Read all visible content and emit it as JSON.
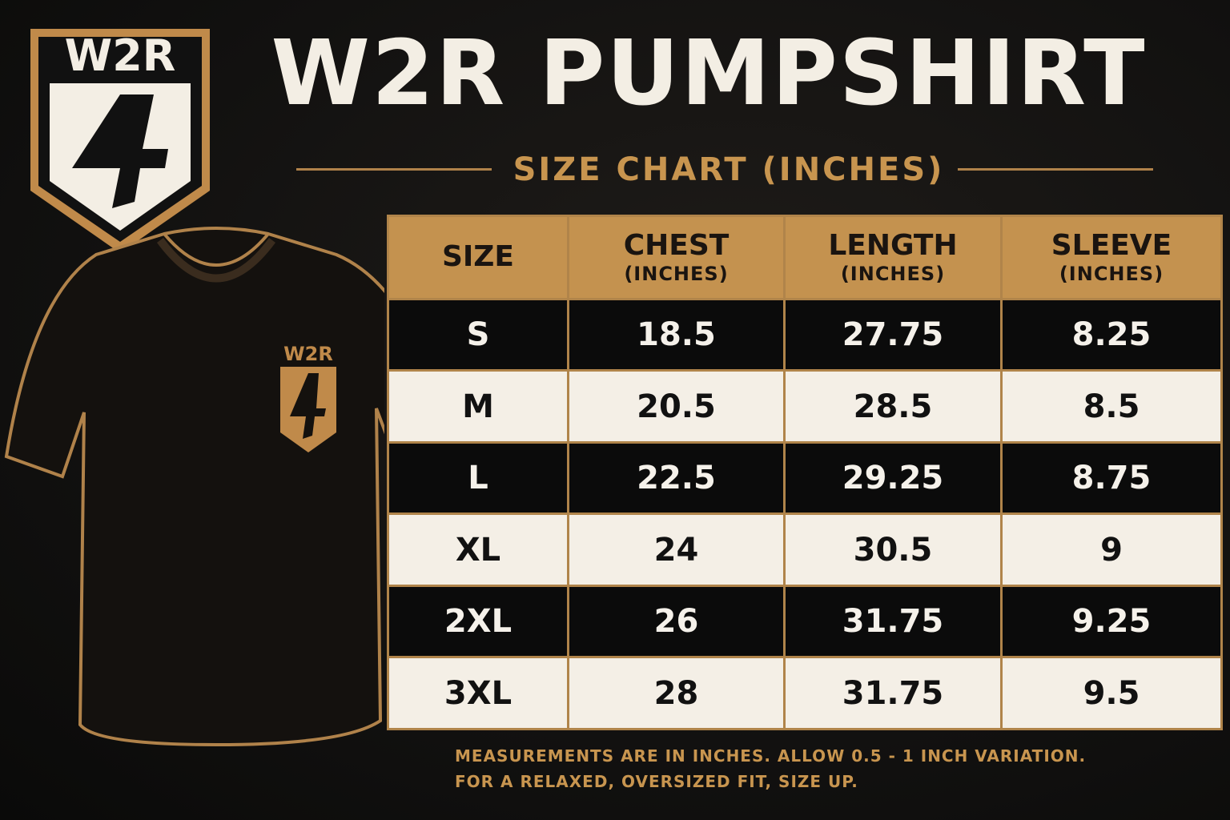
{
  "logo": {
    "text": "W2R"
  },
  "header": {
    "title": "W2R PUMPSHIRT",
    "subtitle": "SIZE CHART (INCHES)"
  },
  "shirt": {
    "logo_text": "W2R"
  },
  "table": {
    "columns": [
      {
        "label": "SIZE"
      },
      {
        "label": "CHEST",
        "unit": "(INCHES)"
      },
      {
        "label": "LENGTH",
        "unit": "(INCHES)"
      },
      {
        "label": "SLEEVE",
        "unit": "(INCHES)"
      }
    ],
    "rows": [
      [
        "S",
        "18.5",
        "27.75",
        "8.25"
      ],
      [
        "M",
        "20.5",
        "28.5",
        "8.5"
      ],
      [
        "L",
        "22.5",
        "29.25",
        "8.75"
      ],
      [
        "XL",
        "24",
        "30.5",
        "9"
      ],
      [
        "2XL",
        "26",
        "31.75",
        "9.25"
      ],
      [
        "3XL",
        "28",
        "31.75",
        "9.5"
      ]
    ]
  },
  "footnote": {
    "lines": [
      "MEASUREMENTS ARE IN INCHES. ALLOW 0.5 - 1 INCH VARIATION.",
      "FOR A RELAXED, OVERSIZED FIT, SIZE UP."
    ]
  }
}
